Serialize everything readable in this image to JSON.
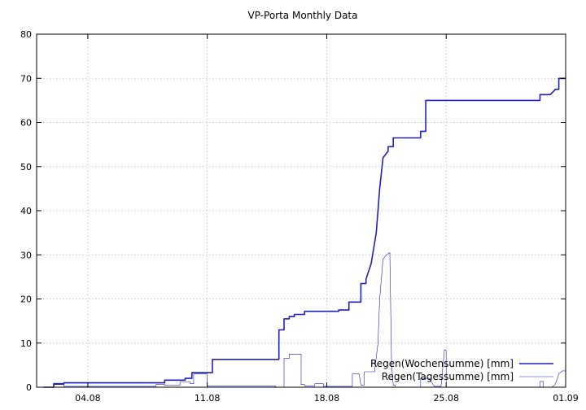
{
  "chart_data": {
    "type": "line",
    "title": "VP-Porta Monthly Data",
    "xlabel": "",
    "ylabel": "",
    "x_unit": "day of period (0 = 01.08)",
    "xlim": [
      0,
      31
    ],
    "ylim": [
      0,
      80
    ],
    "x_ticks": [
      {
        "value": 3,
        "label": "04.08"
      },
      {
        "value": 10,
        "label": "11.08"
      },
      {
        "value": 17,
        "label": "18.08"
      },
      {
        "value": 24,
        "label": "25.08"
      },
      {
        "value": 31,
        "label": "01.09"
      }
    ],
    "y_ticks": [
      {
        "value": 0,
        "label": "0"
      },
      {
        "value": 10,
        "label": "10"
      },
      {
        "value": 20,
        "label": "20"
      },
      {
        "value": 30,
        "label": "30"
      },
      {
        "value": 40,
        "label": "40"
      },
      {
        "value": 50,
        "label": "50"
      },
      {
        "value": 60,
        "label": "60"
      },
      {
        "value": 70,
        "label": "70"
      },
      {
        "value": 80,
        "label": "80"
      }
    ],
    "grid": true,
    "legend_position": "bottom-right",
    "series": [
      {
        "name": "Regen(Wochensumme) [mm]",
        "color": "#1f1fbf",
        "style": "thick",
        "x": [
          0.4,
          1.0,
          1.0,
          1.6,
          1.6,
          7.5,
          7.5,
          8.7,
          8.7,
          9.1,
          9.1,
          10.3,
          10.3,
          14.2,
          14.2,
          14.5,
          14.5,
          14.8,
          14.8,
          15.1,
          15.1,
          15.7,
          15.7,
          17.7,
          17.7,
          18.3,
          18.3,
          19.0,
          19.0,
          19.3,
          19.3,
          19.6,
          19.9,
          20.1,
          20.3,
          20.6,
          20.6,
          20.9,
          20.9,
          22.5,
          22.5,
          22.8,
          22.8,
          29.5,
          29.5,
          30.1,
          30.1,
          30.4,
          30.6,
          30.6,
          31.0
        ],
        "y": [
          0,
          0,
          0.8,
          0.8,
          1.0,
          1.0,
          1.6,
          1.6,
          2.0,
          2.0,
          3.3,
          3.3,
          6.3,
          6.3,
          13.0,
          13.0,
          15.5,
          15.5,
          16.0,
          16.0,
          16.5,
          16.5,
          17.2,
          17.2,
          17.5,
          17.5,
          19.3,
          19.3,
          23.5,
          23.5,
          24.5,
          28.0,
          35.0,
          45.0,
          52.0,
          53.5,
          54.5,
          54.5,
          56.5,
          56.5,
          58.0,
          58.0,
          65.0,
          65.0,
          66.3,
          66.3,
          66.3,
          67.5,
          67.5,
          70.0,
          70.0
        ]
      },
      {
        "name": "Regen(Tagessumme) [mm]",
        "color": "#1f1fbf",
        "style": "thin",
        "x": [
          0.4,
          1.0,
          1.0,
          1.6,
          1.6,
          7.0,
          7.0,
          7.5,
          7.5,
          8.4,
          8.4,
          9.0,
          9.0,
          9.2,
          9.2,
          10.0,
          10.0,
          14.0,
          14.0,
          14.5,
          14.5,
          14.8,
          14.8,
          15.5,
          15.5,
          15.7,
          15.7,
          16.3,
          16.3,
          16.8,
          16.8,
          18.5,
          18.5,
          18.9,
          19.0,
          19.2,
          19.2,
          19.8,
          20.0,
          20.1,
          20.3,
          20.5,
          20.7,
          20.8,
          20.9,
          21.0,
          21.0,
          22.5,
          22.5,
          23.0,
          23.3,
          23.7,
          23.9,
          24.0,
          24.0,
          29.5,
          29.5,
          29.7,
          29.7,
          30.2,
          30.2,
          30.4,
          30.6,
          30.8,
          31.0
        ],
        "y": [
          0,
          0,
          0.6,
          0.6,
          0.2,
          0.2,
          0.6,
          0.6,
          0.4,
          0.4,
          1.2,
          1.2,
          0.8,
          0.8,
          3.0,
          3.0,
          0.3,
          0.3,
          0,
          0,
          6.5,
          6.5,
          7.5,
          7.5,
          0.6,
          0.6,
          0.3,
          0.3,
          0.8,
          0.8,
          0.2,
          0.2,
          3.0,
          3.0,
          0.5,
          0.5,
          3.5,
          3.5,
          10.0,
          20.0,
          29.0,
          30.0,
          30.5,
          5.0,
          0.5,
          0.5,
          0,
          0,
          2.0,
          2.0,
          0.2,
          0.2,
          8.5,
          8.3,
          0,
          0,
          1.3,
          1.3,
          0,
          0,
          0,
          0.7,
          3.0,
          3.7,
          3.7
        ]
      }
    ]
  }
}
